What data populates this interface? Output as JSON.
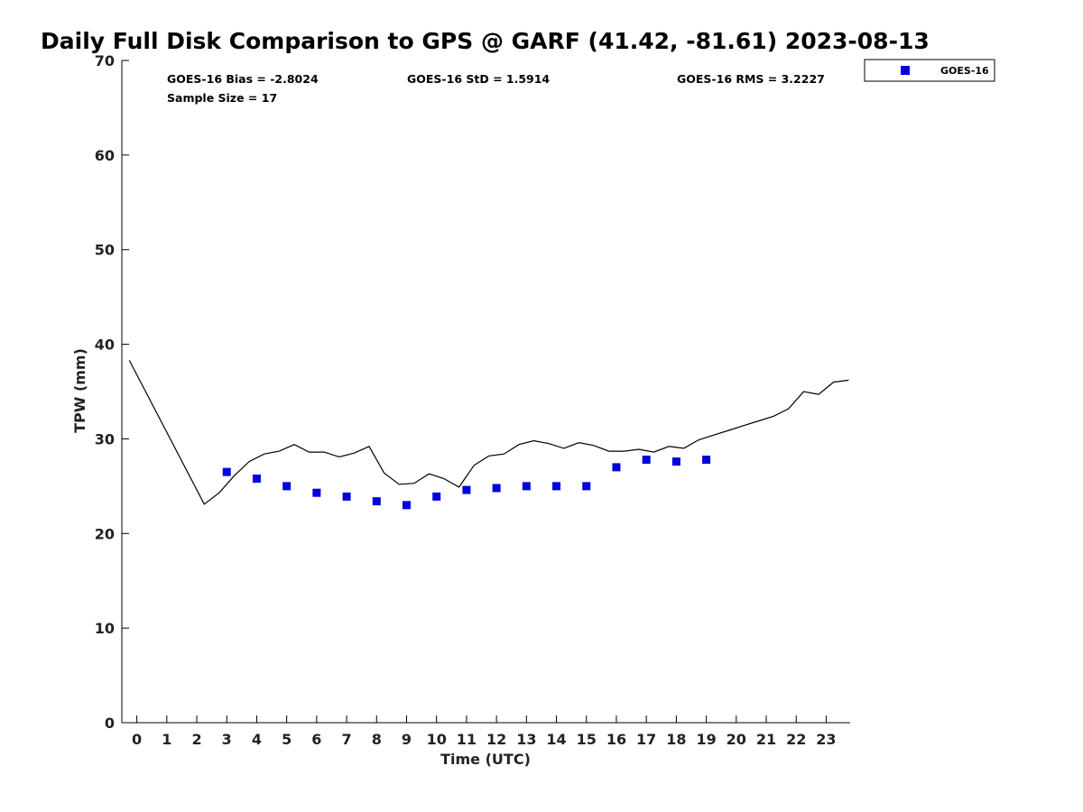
{
  "chart_data": {
    "type": "scatter",
    "title": "Daily Full Disk Comparison to GPS @ GARF (41.42, -81.61) 2023-08-13",
    "xlabel": "Time (UTC)",
    "ylabel": "TPW (mm)",
    "xlim": [
      -0.5,
      23.8
    ],
    "ylim": [
      0,
      70
    ],
    "xticks": [
      0,
      1,
      2,
      3,
      4,
      5,
      6,
      7,
      8,
      9,
      10,
      11,
      12,
      13,
      14,
      15,
      16,
      17,
      18,
      19,
      20,
      21,
      22,
      23
    ],
    "yticks": [
      0,
      10,
      20,
      30,
      40,
      50,
      60,
      70
    ],
    "grid": false,
    "legend_position": "top-right",
    "stats": {
      "bias": "GOES-16 Bias = -2.8024",
      "std": "GOES-16 StD = 1.5914",
      "rms": "GOES-16 RMS = 3.2227",
      "sample": "Sample Size = 17"
    },
    "series": [
      {
        "type": "scatter",
        "name": "GOES-16",
        "color": "#0000dd",
        "marker": "square",
        "x": [
          3,
          4,
          5,
          6,
          7,
          8,
          9,
          10,
          11,
          12,
          13,
          14,
          15,
          16,
          17,
          18,
          19
        ],
        "y": [
          26.5,
          25.8,
          25.0,
          24.3,
          23.9,
          23.4,
          23.0,
          23.9,
          24.6,
          24.8,
          25.0,
          25.0,
          25.0,
          27.0,
          27.8,
          27.6,
          27.8
        ]
      },
      {
        "type": "line",
        "color": "#000000",
        "x": [
          -0.25,
          2.25,
          2.75,
          3.25,
          3.75,
          4.25,
          4.75,
          5.25,
          5.75,
          6.25,
          6.75,
          7.25,
          7.75,
          8.25,
          8.75,
          9.25,
          9.75,
          10.25,
          10.75,
          11.25,
          11.75,
          12.25,
          12.75,
          13.25,
          13.75,
          14.25,
          14.75,
          15.25,
          15.75,
          16.25,
          16.75,
          17.25,
          17.75,
          18.25,
          18.75,
          19.25,
          19.75,
          20.25,
          20.75,
          21.25,
          21.75,
          22.25,
          22.75,
          23.25,
          23.75
        ],
        "y": [
          38.3,
          23.1,
          24.3,
          26.1,
          27.6,
          28.4,
          28.7,
          29.4,
          28.6,
          28.6,
          28.1,
          28.5,
          29.2,
          26.4,
          25.2,
          25.3,
          26.3,
          25.8,
          24.9,
          27.2,
          28.2,
          28.4,
          29.4,
          29.8,
          29.5,
          29.0,
          29.6,
          29.3,
          28.7,
          28.7,
          28.9,
          28.6,
          29.2,
          29.0,
          29.9,
          30.4,
          30.9,
          31.4,
          31.9,
          32.4,
          33.2,
          35.0,
          34.7,
          36.0,
          36.2
        ]
      }
    ]
  }
}
